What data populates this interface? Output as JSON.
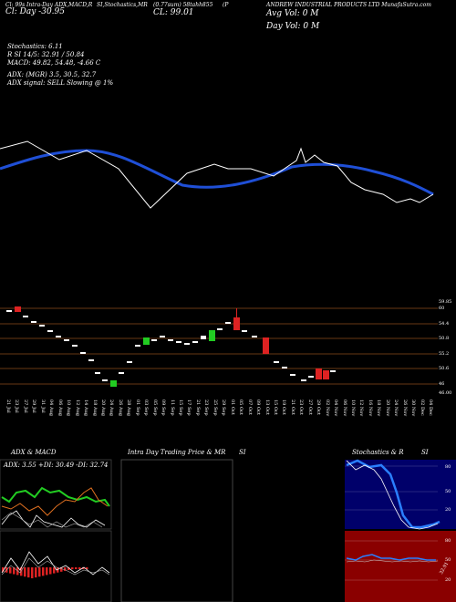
{
  "header": {
    "left_line1": "Cl: 99s  Intra-Day  ADX,MACD,R",
    "left_line2": "Cl: Day  -30.95",
    "mid_1": "SI,Stochastics,MR",
    "mid_2": "(0.77sum) 58tahh855",
    "mid_3": "CL: 99.01",
    "mid_4": "(P",
    "right_title": "ANDREW INDUSTRIAL PRODUCTS LTD MunafaSutra.com",
    "avg_vol": "Avg Vol: 0   M",
    "day_vol": "Day Vol: 0   M"
  },
  "indicators": {
    "stoch": "Stochastics: 6.11",
    "rsi": "R               SI 14/5: 32.91 / 50.84",
    "macd": "MACD: 49.82, 54.48, -4.66  C",
    "adx": "ADX:                               (MGR) 3.5, 30.5, 32.7",
    "adx_signal": "ADX  signal: SELL  Slowing @ 1%"
  },
  "price_axis": [
    "59.85",
    "60",
    "54.4",
    "50.8",
    "55.2",
    "50.6",
    "46",
    "46.00"
  ],
  "dates": [
    "21 Jul",
    "23 Jul",
    "27 Jul",
    "29 Jul",
    "31 Jul",
    "04 Aug",
    "06 Aug",
    "10 Aug",
    "12 Aug",
    "14 Aug",
    "18 Aug",
    "20 Aug",
    "24 Aug",
    "26 Aug",
    "28 Aug",
    "01 Sep",
    "03 Sep",
    "05 Sep",
    "09 Sep",
    "11 Sep",
    "15 Sep",
    "17 Sep",
    "21 Sep",
    "23 Sep",
    "25 Sep",
    "29 Sep",
    "01 Oct",
    "05 Oct",
    "07 Oct",
    "09 Oct",
    "13 Oct",
    "15 Oct",
    "19 Oct",
    "21 Oct",
    "23 Oct",
    "27 Oct",
    "29 Oct",
    "02 Nov",
    "04 Nov",
    "06 Nov",
    "10 Nov",
    "12 Nov",
    "16 Nov",
    "18 Nov",
    "20 Nov",
    "24 Nov",
    "26 Nov",
    "30 Nov",
    "02 Dec",
    "04 Dec"
  ],
  "panels": {
    "adx_title": "ADX  & MACD",
    "adx_readout": "ADX: 3.55  +DI: 30.49  -DI: 32.74",
    "intra_title": "Intra  Day Trading Price  & MR",
    "intra_si": "SI",
    "stoch_title": "Stochastics & R",
    "stoch_si": "SI",
    "stoch_ticks": [
      "80",
      "50",
      "20"
    ],
    "rsi_ticks": [
      "80",
      "50",
      "20"
    ],
    "rsi_value": "32.91"
  },
  "colors": {
    "ma": "#1f4fd6",
    "price": "#ffffff",
    "bull": "#22cc22",
    "bear": "#dd2222",
    "grid": "#8b4a1a",
    "adx_green": "#22cc22",
    "adx_orange": "#e07020",
    "stoch_bg": "#00006a",
    "rsi_bg": "#8a0000"
  }
}
